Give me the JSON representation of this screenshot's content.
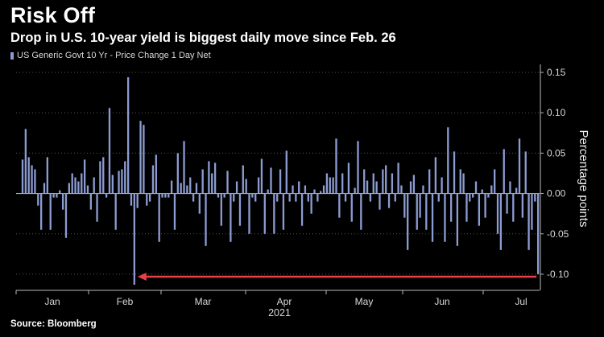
{
  "header": {
    "title": "Risk Off",
    "subtitle": "Drop in U.S. 10-year yield is biggest daily move since Feb. 26"
  },
  "source": "Source: Bloomberg",
  "colors": {
    "bar": "#8c9bd2",
    "zero_line": "#c8c8c8",
    "grid": "#555555",
    "arrow": "#e8404a",
    "background": "#000000"
  },
  "chart_data": {
    "type": "bar",
    "title": "Risk Off",
    "subtitle": "Drop in U.S. 10-year yield is biggest daily move since Feb. 26",
    "ylabel": "Percentage points",
    "xlabel": "2021",
    "legend": {
      "position": "top-left",
      "entries": [
        "US Generic Govt 10 Yr - Price Change 1 Day Net"
      ]
    },
    "grid": "horizontal dotted",
    "ylim": [
      -0.12,
      0.16
    ],
    "yticks": [
      0.15,
      0.1,
      0.05,
      0.0,
      -0.05,
      -0.1
    ],
    "ytick_labels": [
      "0.15",
      "0.10",
      "0.05",
      "0.00",
      "-0.05",
      "-0.10"
    ],
    "x_month_labels": [
      "Jan",
      "Feb",
      "Mar",
      "Apr",
      "May",
      "Jun",
      "Jul"
    ],
    "year_label": "2021",
    "annotation": "arrow from the last bar back to the Feb. 26 bar, marking an equally large drop",
    "series": [
      {
        "name": "US Generic Govt 10 Yr - Price Change 1 Day Net",
        "values": [
          0.042,
          0.08,
          0.045,
          0.035,
          0.03,
          -0.015,
          -0.045,
          0.013,
          0.045,
          -0.045,
          -0.005,
          -0.005,
          0.004,
          -0.02,
          -0.055,
          0.013,
          0.025,
          0.02,
          0.015,
          0.025,
          0.042,
          0.01,
          -0.02,
          0.02,
          -0.035,
          0.04,
          0.045,
          -0.005,
          0.106,
          0.023,
          -0.045,
          0.028,
          0.03,
          0.04,
          0.144,
          -0.015,
          -0.113,
          -0.018,
          0.09,
          0.085,
          -0.015,
          -0.01,
          0.035,
          0.048,
          -0.06,
          -0.005,
          -0.005,
          -0.005,
          0.016,
          -0.045,
          0.05,
          0.013,
          0.065,
          0.01,
          0.02,
          -0.01,
          0.013,
          -0.025,
          0.03,
          -0.065,
          0.04,
          0.025,
          0.038,
          -0.005,
          -0.04,
          -0.005,
          0.028,
          -0.06,
          -0.01,
          0.015,
          -0.04,
          0.035,
          0.018,
          -0.05,
          -0.005,
          -0.01,
          0.02,
          0.043,
          -0.05,
          0.005,
          0.032,
          -0.05,
          -0.01,
          0.03,
          -0.045,
          0.053,
          -0.01,
          0.01,
          -0.01,
          0.015,
          -0.04,
          0.01,
          -0.01,
          -0.025,
          0.005,
          -0.01,
          0.003,
          0.01,
          0.025,
          0.02,
          0.02,
          0.068,
          -0.03,
          0.025,
          -0.01,
          0.038,
          -0.035,
          0.007,
          0.065,
          -0.045,
          0.03,
          0.016,
          -0.01,
          0.025,
          0.015,
          -0.02,
          0.03,
          0.035,
          -0.018,
          0.025,
          -0.01,
          0.038,
          0.01,
          -0.03,
          -0.07,
          0.015,
          0.023,
          -0.045,
          -0.03,
          0.01,
          -0.045,
          0.03,
          -0.06,
          0.045,
          -0.01,
          0.02,
          -0.06,
          0.082,
          -0.035,
          0.052,
          -0.065,
          0.03,
          0.025,
          -0.035,
          -0.01,
          -0.005,
          0.015,
          -0.04,
          0.005,
          -0.03,
          -0.005,
          0.01,
          0.03,
          -0.05,
          -0.07,
          0.055,
          -0.025,
          0.015,
          -0.035,
          0.007,
          0.068,
          -0.03,
          0.052,
          -0.07,
          -0.045,
          -0.01,
          -0.1
        ]
      }
    ]
  }
}
